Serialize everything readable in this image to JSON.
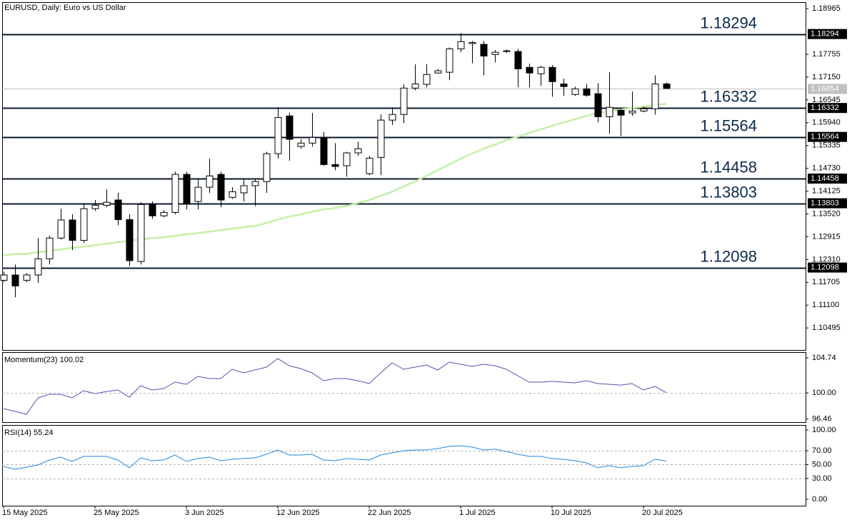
{
  "chart_data": [
    {
      "type": "candlestick",
      "title": "EURUSD, Daily:  Euro vs US Dollar",
      "categories": [
        "15 May 2025",
        null,
        null,
        null,
        null,
        null,
        null,
        null,
        "25 May 2025",
        null,
        null,
        null,
        null,
        null,
        null,
        null,
        "3 Jun 2025",
        null,
        null,
        null,
        null,
        null,
        null,
        null,
        "12 Jun 2025",
        null,
        null,
        null,
        null,
        null,
        null,
        null,
        "22 Jun 2025",
        null,
        null,
        null,
        null,
        null,
        null,
        null,
        "1 Jul 2025",
        null,
        null,
        null,
        null,
        null,
        null,
        null,
        "10 Jul 2025",
        null,
        null,
        null,
        null,
        null,
        null,
        null,
        "20 Jul 2025",
        null,
        null
      ],
      "open": [
        1.1176,
        1.119,
        1.1176,
        1.119,
        1.1233,
        1.1288,
        1.1336,
        1.1282,
        1.1366,
        1.1375,
        1.1389,
        1.1337,
        1.1226,
        1.1377,
        1.1347,
        1.1356,
        1.1457,
        1.1385,
        1.1423,
        1.1457,
        1.1396,
        1.1408,
        1.1427,
        1.1438,
        1.1512,
        1.1612,
        1.1531,
        1.154,
        1.1555,
        1.1483,
        1.148,
        1.1514,
        1.1459,
        1.1502,
        1.1601,
        1.1616,
        1.1686,
        1.1696,
        1.1726,
        1.1728,
        1.179,
        1.1804,
        1.1802,
        1.1775,
        1.1783,
        1.1783,
        1.1741,
        1.1724,
        1.1741,
        1.1697,
        1.1669,
        1.1684,
        1.1671,
        1.161,
        1.1627,
        1.162,
        1.1625,
        1.1631,
        1.1697
      ],
      "high": [
        1.1199,
        1.1218,
        1.1195,
        1.1288,
        1.1294,
        1.1366,
        1.1351,
        1.1377,
        1.1389,
        1.1417,
        1.1408,
        1.1351,
        1.1383,
        1.1385,
        1.1362,
        1.1464,
        1.1464,
        1.1445,
        1.1499,
        1.1464,
        1.1423,
        1.1445,
        1.1445,
        1.1517,
        1.1635,
        1.162,
        1.155,
        1.162,
        1.1569,
        1.154,
        1.1517,
        1.1544,
        1.1506,
        1.1616,
        1.1635,
        1.1696,
        1.1749,
        1.1749,
        1.1737,
        1.1794,
        1.1832,
        1.1811,
        1.1811,
        1.1787,
        1.1788,
        1.179,
        1.1751,
        1.1745,
        1.1747,
        1.1711,
        1.169,
        1.1697,
        1.1699,
        1.1728,
        1.1631,
        1.1677,
        1.1637,
        1.172,
        1.1701
      ],
      "low": [
        1.1171,
        1.1131,
        1.1171,
        1.1169,
        1.1218,
        1.1284,
        1.1256,
        1.1275,
        1.136,
        1.137,
        1.1322,
        1.1214,
        1.1218,
        1.1339,
        1.1343,
        1.1351,
        1.1364,
        1.1364,
        1.1408,
        1.137,
        1.1392,
        1.1385,
        1.1373,
        1.1408,
        1.1499,
        1.1493,
        1.1525,
        1.1531,
        1.148,
        1.1468,
        1.1451,
        1.1506,
        1.1455,
        1.1455,
        1.1588,
        1.1593,
        1.168,
        1.1688,
        1.1724,
        1.1707,
        1.1781,
        1.1752,
        1.172,
        1.1754,
        1.1779,
        1.1688,
        1.1688,
        1.1692,
        1.1663,
        1.1665,
        1.1665,
        1.1663,
        1.1595,
        1.1565,
        1.1559,
        1.1612,
        1.1622,
        1.1616,
        1.1684
      ],
      "close": [
        1.119,
        1.1161,
        1.119,
        1.1233,
        1.1288,
        1.1336,
        1.1282,
        1.1366,
        1.1375,
        1.1383,
        1.1337,
        1.1228,
        1.1377,
        1.1347,
        1.1356,
        1.1457,
        1.1379,
        1.1423,
        1.1453,
        1.1389,
        1.1411,
        1.1427,
        1.1438,
        1.1512,
        1.1608,
        1.155,
        1.154,
        1.1555,
        1.1483,
        1.1478,
        1.1514,
        1.1525,
        1.15,
        1.1601,
        1.1616,
        1.1686,
        1.1697,
        1.1722,
        1.1732,
        1.179,
        1.1809,
        1.1807,
        1.1771,
        1.1781,
        1.1785,
        1.1737,
        1.1726,
        1.1741,
        1.1703,
        1.169,
        1.1684,
        1.1667,
        1.161,
        1.1635,
        1.1614,
        1.1625,
        1.1631,
        1.1697,
        1.1685
      ],
      "overlay": {
        "color": "#c4f0a4",
        "values": [
          1.1243,
          1.1245,
          1.1246,
          1.125,
          1.1254,
          1.1258,
          1.1262,
          1.1265,
          1.1269,
          1.1273,
          1.1277,
          1.1281,
          1.1284,
          1.1288,
          1.129,
          1.1294,
          1.1298,
          1.1301,
          1.1305,
          1.1309,
          1.1313,
          1.1317,
          1.132,
          1.1328,
          1.1337,
          1.1345,
          1.1351,
          1.1358,
          1.1364,
          1.1368,
          1.1373,
          1.1381,
          1.1389,
          1.14,
          1.1411,
          1.1425,
          1.1438,
          1.1453,
          1.1468,
          1.1483,
          1.1499,
          1.1512,
          1.1525,
          1.1536,
          1.1548,
          1.1557,
          1.1567,
          1.1576,
          1.1586,
          1.1595,
          1.1603,
          1.1612,
          1.162,
          1.1625,
          1.1629,
          1.1633,
          1.1637,
          1.1641,
          1.1644
        ]
      },
      "levels": [
        1.18294,
        1.16332,
        1.15564,
        1.14458,
        1.13803,
        1.12098
      ],
      "current_price": 1.16854,
      "ylim": [
        1.0991,
        1.1914
      ],
      "yticks": [
        1.18965,
        1.17755,
        {
          "value": 1.1715,
          "label": "1.17150"
        },
        1.16545,
        {
          "value": 1.1594,
          "label": "1.15940"
        },
        1.15335,
        {
          "value": 1.1473,
          "label": "1.14730"
        },
        1.14125,
        {
          "value": 1.1352,
          "label": "1.13520"
        },
        1.12915,
        {
          "value": 1.1231,
          "label": "1.12310"
        },
        1.11705,
        {
          "value": 1.111,
          "label": "1.11100"
        },
        1.10495
      ]
    },
    {
      "type": "line",
      "title": "Momentum(23) 100.02",
      "color": "#5a4fb0",
      "values": [
        97.87,
        97.49,
        97.1,
        99.32,
        99.81,
        99.81,
        99.32,
        100.29,
        99.9,
        100.19,
        100.39,
        99.42,
        100.97,
        100.39,
        100.58,
        101.45,
        101.16,
        102.22,
        101.93,
        101.93,
        103.19,
        102.71,
        103.09,
        103.48,
        104.64,
        103.67,
        103.29,
        102.71,
        101.64,
        101.93,
        101.93,
        101.64,
        101.26,
        102.71,
        104.06,
        103.19,
        103.48,
        103.77,
        103.09,
        104.16,
        103.87,
        103.58,
        103.87,
        103.67,
        103.19,
        102.32,
        101.45,
        101.45,
        101.55,
        101.45,
        101.35,
        101.64,
        101.26,
        101.16,
        101.06,
        101.26,
        100.39,
        100.87,
        100.02
      ],
      "ylim": [
        96.04,
        105.51
      ],
      "yticks": [
        104.74,
        {
          "value": 100,
          "label": "100.00"
        },
        96.46
      ],
      "levels": [
        100
      ]
    },
    {
      "type": "line",
      "title": "RSI(14) 55.24",
      "color": "#1e88e5",
      "values": [
        47.4,
        43.3,
        46.4,
        49.5,
        56.7,
        60.8,
        54.6,
        61.9,
        61.9,
        61.9,
        56.7,
        45.4,
        59.8,
        55.7,
        56.7,
        63.9,
        54.6,
        58.8,
        60.8,
        55.7,
        57.7,
        58.8,
        59.8,
        64.9,
        71.1,
        63.9,
        63.9,
        64.9,
        56.7,
        55.7,
        58.8,
        57.7,
        56.7,
        63.9,
        67.0,
        70.1,
        71.1,
        71.1,
        73.2,
        76.3,
        77.3,
        75.3,
        71.1,
        72.2,
        69.1,
        64.9,
        61.9,
        61.9,
        58.8,
        57.7,
        55.7,
        52.6,
        45.4,
        48.5,
        45.4,
        47.4,
        48.5,
        57.7,
        55.24
      ],
      "ylim": [
        -9.3,
        107.2
      ],
      "yticks": [
        {
          "value": 100,
          "label": "100.00"
        },
        {
          "value": 70,
          "label": "70.00"
        },
        {
          "value": 50,
          "label": "50.00"
        },
        {
          "value": 30,
          "label": "30.00"
        },
        {
          "value": 0,
          "label": "0.00"
        }
      ],
      "levels": [
        70,
        50,
        30
      ]
    }
  ]
}
